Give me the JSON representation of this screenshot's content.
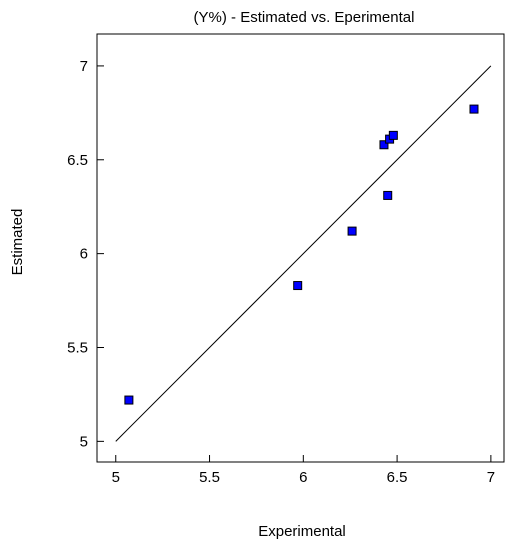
{
  "chart_data": {
    "type": "scatter",
    "title": "(Y%) - Estimated vs. Eperimental",
    "xlabel": "Experimental",
    "ylabel": "Estimated",
    "xlim": [
      4.9,
      7.07
    ],
    "ylim": [
      4.89,
      7.17
    ],
    "xticks": [
      5,
      5.5,
      6,
      6.5,
      7
    ],
    "yticks": [
      5,
      5.5,
      6,
      6.5,
      7
    ],
    "xtick_labels": [
      "5",
      "5.5",
      "6",
      "6.5",
      "7"
    ],
    "ytick_labels": [
      "5",
      "5.5",
      "6",
      "6.5",
      "7"
    ],
    "grid": false,
    "reference_line": {
      "from": [
        5,
        5
      ],
      "to": [
        7,
        7
      ]
    },
    "point_color": "#0000ff",
    "point_edge_color": "#000000",
    "points": [
      {
        "x": 5.07,
        "y": 5.22
      },
      {
        "x": 5.97,
        "y": 5.83
      },
      {
        "x": 6.26,
        "y": 6.12
      },
      {
        "x": 6.43,
        "y": 6.58
      },
      {
        "x": 6.45,
        "y": 6.31
      },
      {
        "x": 6.46,
        "y": 6.61
      },
      {
        "x": 6.48,
        "y": 6.63
      },
      {
        "x": 6.91,
        "y": 6.77
      }
    ]
  }
}
